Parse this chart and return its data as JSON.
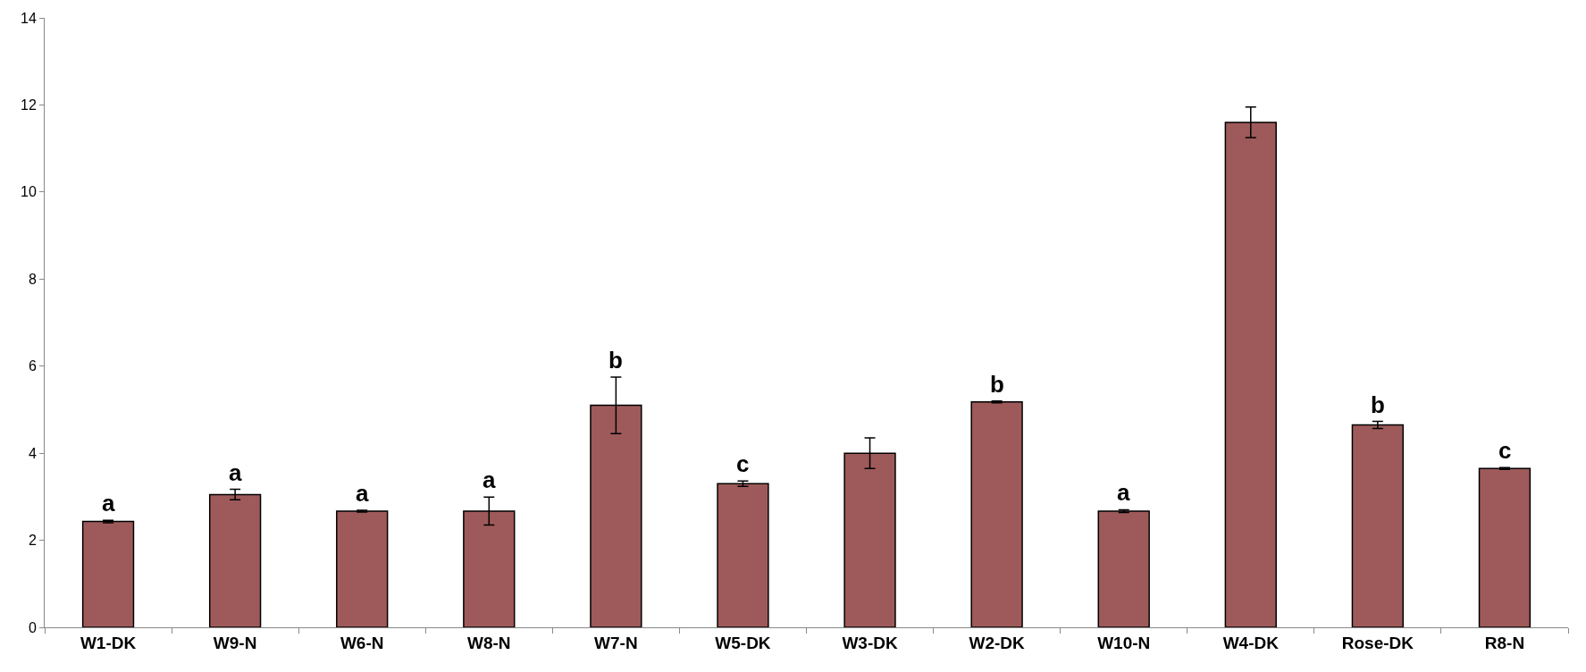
{
  "chart_data": {
    "type": "bar",
    "categories": [
      "W1-DK",
      "W9-N",
      "W6-N",
      "W8-N",
      "W7-N",
      "W5-DK",
      "W3-DK",
      "W2-DK",
      "W10-N",
      "W4-DK",
      "Rose-DK",
      "R8-N"
    ],
    "values": [
      2.43,
      3.05,
      2.67,
      2.67,
      5.1,
      3.3,
      4.0,
      5.18,
      2.67,
      11.6,
      4.65,
      3.65
    ],
    "errors": [
      0.03,
      0.12,
      0.02,
      0.32,
      0.65,
      0.06,
      0.35,
      0.02,
      0.03,
      0.35,
      0.08,
      0.02
    ],
    "color": "#9e5a5a",
    "ylim": [
      0,
      14
    ],
    "yticks": [
      0,
      2,
      4,
      6,
      8,
      10,
      12,
      14
    ],
    "grid": false,
    "annotations": [
      {
        "text": "a",
        "x": "W1-DK",
        "y": 2.43
      },
      {
        "text": "a",
        "x": "W9-N",
        "y": 3.05
      },
      {
        "text": "a",
        "x": "W6-N",
        "y": 2.67
      },
      {
        "text": "a",
        "x": "W8-N",
        "y": 2.67
      },
      {
        "text": "b",
        "x": "W7-N",
        "y": 5.1
      },
      {
        "text": "c",
        "x": "W5-DK",
        "y": 3.3
      },
      {
        "text": "b",
        "x": "W2-DK",
        "y": 5.18
      },
      {
        "text": "a",
        "x": "W10-N",
        "y": 2.67
      },
      {
        "text": "b",
        "x": "Rose-DK",
        "y": 4.65
      },
      {
        "text": "c",
        "x": "R8-N",
        "y": 3.65
      }
    ]
  }
}
